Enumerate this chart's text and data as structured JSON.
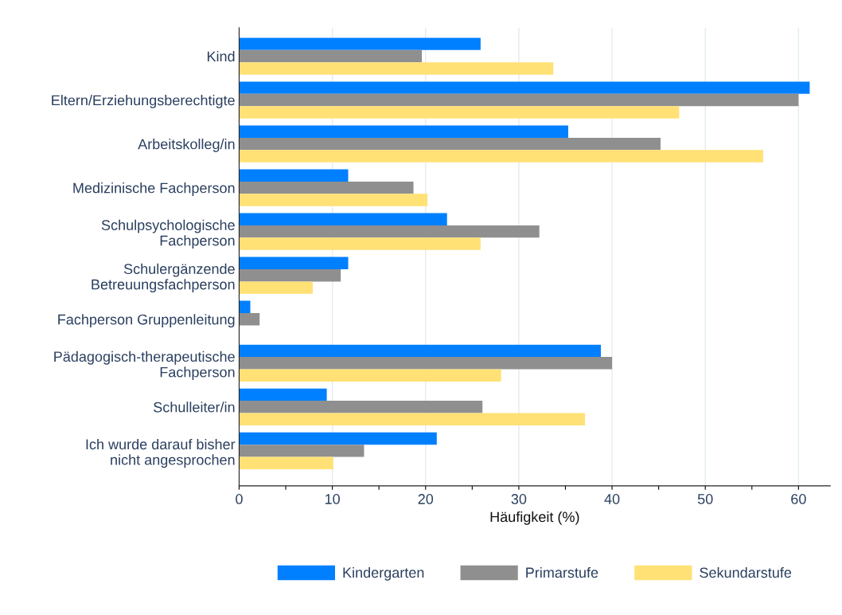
{
  "chart_data": {
    "type": "bar",
    "orientation": "horizontal",
    "xlabel": "Häufigkeit (%)",
    "categories": [
      "Kind",
      "Eltern/Erziehungsberechtigte",
      "Arbeitskolleg/in",
      "Medizinische Fachperson",
      "Schulpsychologische\nFachperson",
      "Schulergänzende\nBetreuungsfachperson",
      "Fachperson Gruppenleitung",
      "Pädagogisch-therapeutische\nFachperson",
      "Schulleiter/in",
      "Ich wurde darauf bisher\nnicht angesprochen"
    ],
    "series": [
      {
        "name": "Kindergarten",
        "color": "#0080ff",
        "values": [
          25.9,
          61.2,
          35.3,
          11.7,
          22.3,
          11.7,
          1.2,
          38.8,
          9.4,
          21.2
        ]
      },
      {
        "name": "Primarstufe",
        "color": "#8f8f8f",
        "values": [
          19.6,
          60.0,
          45.2,
          18.7,
          32.2,
          10.9,
          2.2,
          40.0,
          26.1,
          13.4
        ]
      },
      {
        "name": "Sekundarstufe",
        "color": "#ffe175",
        "values": [
          33.7,
          47.2,
          56.2,
          20.2,
          25.9,
          7.9,
          null,
          28.1,
          37.1,
          10.1
        ]
      }
    ],
    "xlim": [
      0,
      63.4
    ],
    "xticks": [
      0,
      {
        "value": 5,
        "label": null
      },
      10,
      {
        "value": 15,
        "label": null
      },
      20,
      {
        "value": 25,
        "label": null
      },
      30,
      {
        "value": 35,
        "label": null
      },
      40,
      {
        "value": 45,
        "label": null
      },
      50,
      {
        "value": 55,
        "label": null
      },
      60
    ],
    "grid": "x",
    "legend": "bottom"
  }
}
